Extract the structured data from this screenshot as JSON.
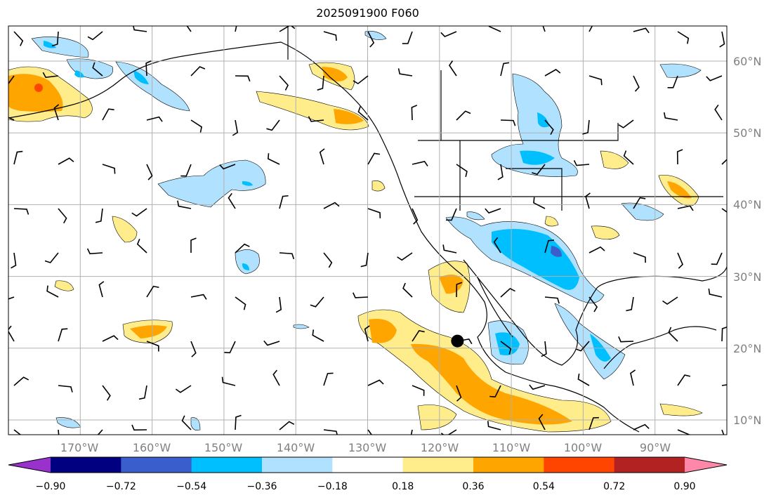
{
  "title": "2025091900 F060",
  "map": {
    "lon_labels": [
      "170°W",
      "160°W",
      "150°W",
      "140°W",
      "130°W",
      "120°W",
      "110°W",
      "100°W",
      "90°W"
    ],
    "lat_labels": [
      "60°N",
      "50°N",
      "40°N",
      "30°N",
      "20°N",
      "10°N"
    ],
    "marker": {
      "lon": -117.5,
      "lat": 21
    }
  },
  "colorbar": {
    "levels": [
      "−0.90",
      "−0.72",
      "−0.54",
      "−0.36",
      "−0.18",
      "0.18",
      "0.36",
      "0.54",
      "0.72",
      "0.90"
    ],
    "colors": [
      "#9932CC",
      "#000080",
      "#3A5FCD",
      "#00BFFF",
      "#B0E2FF",
      "#FFFFFF",
      "#FFEC8B",
      "#FFA500",
      "#FF4500",
      "#B22222",
      "#FF88AA"
    ]
  }
}
